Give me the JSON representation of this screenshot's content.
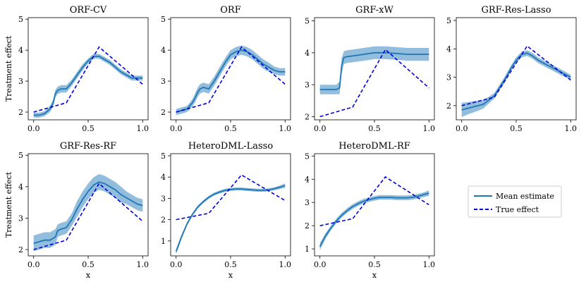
{
  "figure": {
    "ylabel": "Treatment effect",
    "xlabel": "x",
    "legend": {
      "placement": "right",
      "mean_label": "Mean estimate",
      "true_label": "True effect"
    },
    "colors": {
      "mean": "#1f77b4",
      "band": "#7fb1d6",
      "true": "#0000dd"
    }
  },
  "chart_data": [
    {
      "type": "line",
      "title": "ORF-CV",
      "xlim": [
        0,
        1
      ],
      "ylim": [
        1.75,
        5.05
      ],
      "xticks": [
        0.0,
        0.5,
        1.0
      ],
      "xtick_labels": [
        "0.0",
        "0.5",
        "1.0"
      ],
      "yticks": [
        2,
        3,
        4,
        5
      ],
      "ytick_labels": [
        "2",
        "3",
        "4",
        "5"
      ],
      "show_xlabel": false,
      "show_ylabel": true,
      "true_effect": {
        "x": [
          0,
          0.3,
          0.6,
          1.0
        ],
        "y": [
          2.0,
          2.3,
          4.1,
          2.9
        ]
      },
      "mean_estimate": {
        "x": [
          0,
          0.05,
          0.1,
          0.15,
          0.18,
          0.2,
          0.22,
          0.25,
          0.3,
          0.35,
          0.4,
          0.45,
          0.5,
          0.55,
          0.6,
          0.65,
          0.7,
          0.75,
          0.8,
          0.85,
          0.9,
          0.95,
          1.0
        ],
        "y": [
          1.9,
          1.9,
          1.95,
          2.1,
          2.3,
          2.6,
          2.7,
          2.75,
          2.75,
          2.95,
          3.2,
          3.45,
          3.65,
          3.8,
          3.8,
          3.7,
          3.6,
          3.45,
          3.3,
          3.2,
          3.1,
          3.1,
          3.1
        ]
      },
      "band_halfwidth": [
        0.08,
        0.08,
        0.08,
        0.1,
        0.12,
        0.12,
        0.12,
        0.12,
        0.12,
        0.1,
        0.1,
        0.1,
        0.08,
        0.08,
        0.08,
        0.08,
        0.08,
        0.08,
        0.08,
        0.08,
        0.08,
        0.08,
        0.08
      ]
    },
    {
      "type": "line",
      "title": "ORF",
      "xlim": [
        0,
        1
      ],
      "ylim": [
        1.75,
        5.05
      ],
      "xticks": [
        0.0,
        0.5,
        1.0
      ],
      "xtick_labels": [
        "0.0",
        "0.5",
        "1.0"
      ],
      "yticks": [
        2,
        3,
        4,
        5
      ],
      "ytick_labels": [
        "2",
        "3",
        "4",
        "5"
      ],
      "show_xlabel": false,
      "show_ylabel": false,
      "true_effect": {
        "x": [
          0,
          0.3,
          0.6,
          1.0
        ],
        "y": [
          2.0,
          2.3,
          4.1,
          2.9
        ]
      },
      "mean_estimate": {
        "x": [
          0,
          0.05,
          0.1,
          0.15,
          0.18,
          0.2,
          0.22,
          0.25,
          0.3,
          0.35,
          0.4,
          0.45,
          0.5,
          0.55,
          0.6,
          0.65,
          0.7,
          0.75,
          0.8,
          0.85,
          0.9,
          0.95,
          1.0
        ],
        "y": [
          2.0,
          2.05,
          2.1,
          2.3,
          2.5,
          2.65,
          2.75,
          2.8,
          2.75,
          3.0,
          3.3,
          3.6,
          3.85,
          3.95,
          4.0,
          3.95,
          3.85,
          3.7,
          3.55,
          3.45,
          3.35,
          3.3,
          3.3
        ]
      },
      "band_halfwidth": [
        0.1,
        0.1,
        0.1,
        0.12,
        0.15,
        0.15,
        0.15,
        0.15,
        0.15,
        0.15,
        0.15,
        0.15,
        0.15,
        0.15,
        0.15,
        0.15,
        0.15,
        0.15,
        0.15,
        0.15,
        0.12,
        0.12,
        0.12
      ]
    },
    {
      "type": "line",
      "title": "GRF-xW",
      "xlim": [
        0,
        1
      ],
      "ylim": [
        1.9,
        5.1
      ],
      "xticks": [
        0.0,
        0.5,
        1.0
      ],
      "xtick_labels": [
        "0.0",
        "0.5",
        "1.0"
      ],
      "yticks": [
        2,
        3,
        4,
        5
      ],
      "ytick_labels": [
        "2",
        "3",
        "4",
        "5"
      ],
      "show_xlabel": false,
      "show_ylabel": false,
      "true_effect": {
        "x": [
          0,
          0.3,
          0.6,
          1.0
        ],
        "y": [
          2.0,
          2.3,
          4.1,
          2.9
        ]
      },
      "mean_estimate": {
        "x": [
          0,
          0.05,
          0.1,
          0.15,
          0.18,
          0.2,
          0.22,
          0.25,
          0.3,
          0.4,
          0.5,
          0.6,
          0.7,
          0.8,
          0.9,
          1.0
        ],
        "y": [
          2.85,
          2.85,
          2.85,
          2.85,
          2.9,
          3.6,
          3.85,
          3.88,
          3.9,
          3.95,
          4.0,
          4.0,
          3.98,
          3.95,
          3.95,
          3.95
        ]
      },
      "band_halfwidth": [
        0.15,
        0.15,
        0.15,
        0.15,
        0.2,
        0.25,
        0.2,
        0.2,
        0.2,
        0.2,
        0.2,
        0.2,
        0.2,
        0.2,
        0.2,
        0.2
      ]
    },
    {
      "type": "line",
      "title": "GRF-Res-Lasso",
      "xlim": [
        0,
        1
      ],
      "ylim": [
        1.5,
        5.1
      ],
      "xticks": [
        0.0,
        0.5,
        1.0
      ],
      "xtick_labels": [
        "0.0",
        "0.5",
        "1.0"
      ],
      "yticks": [
        2,
        3,
        4,
        5
      ],
      "ytick_labels": [
        "2",
        "3",
        "4",
        "5"
      ],
      "show_xlabel": false,
      "show_ylabel": false,
      "true_effect": {
        "x": [
          0,
          0.3,
          0.6,
          1.0
        ],
        "y": [
          2.0,
          2.3,
          4.1,
          2.9
        ]
      },
      "mean_estimate": {
        "x": [
          0,
          0.05,
          0.1,
          0.15,
          0.2,
          0.25,
          0.3,
          0.35,
          0.4,
          0.45,
          0.5,
          0.55,
          0.6,
          0.65,
          0.7,
          0.75,
          0.8,
          0.85,
          0.9,
          0.95,
          1.0
        ],
        "y": [
          1.85,
          1.9,
          1.95,
          2.0,
          2.05,
          2.2,
          2.35,
          2.65,
          2.95,
          3.3,
          3.6,
          3.8,
          3.85,
          3.75,
          3.6,
          3.5,
          3.4,
          3.3,
          3.2,
          3.1,
          3.0
        ]
      },
      "band_halfwidth": [
        0.25,
        0.22,
        0.2,
        0.18,
        0.15,
        0.12,
        0.1,
        0.1,
        0.1,
        0.1,
        0.1,
        0.1,
        0.1,
        0.1,
        0.1,
        0.1,
        0.1,
        0.1,
        0.1,
        0.1,
        0.08
      ]
    },
    {
      "type": "line",
      "title": "GRF-Res-RF",
      "xlim": [
        0,
        1
      ],
      "ylim": [
        1.8,
        5.05
      ],
      "xticks": [
        0.0,
        0.5,
        1.0
      ],
      "xtick_labels": [
        "0.0",
        "0.5",
        "1.0"
      ],
      "yticks": [
        2,
        3,
        4,
        5
      ],
      "ytick_labels": [
        "2",
        "3",
        "4",
        "5"
      ],
      "show_xlabel": true,
      "show_ylabel": true,
      "true_effect": {
        "x": [
          0,
          0.3,
          0.6,
          1.0
        ],
        "y": [
          2.0,
          2.3,
          4.1,
          2.9
        ]
      },
      "mean_estimate": {
        "x": [
          0,
          0.05,
          0.1,
          0.15,
          0.2,
          0.22,
          0.25,
          0.3,
          0.35,
          0.4,
          0.45,
          0.5,
          0.55,
          0.6,
          0.65,
          0.7,
          0.75,
          0.8,
          0.85,
          0.9,
          0.95,
          1.0
        ],
        "y": [
          2.2,
          2.25,
          2.3,
          2.3,
          2.4,
          2.6,
          2.65,
          2.7,
          2.95,
          3.3,
          3.6,
          3.85,
          4.05,
          4.15,
          4.1,
          4.0,
          3.9,
          3.75,
          3.65,
          3.55,
          3.45,
          3.4
        ]
      },
      "band_halfwidth": [
        0.25,
        0.25,
        0.25,
        0.25,
        0.25,
        0.2,
        0.2,
        0.2,
        0.2,
        0.25,
        0.25,
        0.25,
        0.25,
        0.25,
        0.25,
        0.25,
        0.25,
        0.25,
        0.2,
        0.2,
        0.2,
        0.2
      ]
    },
    {
      "type": "line",
      "title": "HeteroDML-Lasso",
      "xlim": [
        0,
        1
      ],
      "ylim": [
        0.3,
        5.1
      ],
      "xticks": [
        0.0,
        0.5,
        1.0
      ],
      "xtick_labels": [
        "0.0",
        "0.5",
        "1.0"
      ],
      "yticks": [
        1,
        2,
        3,
        4,
        5
      ],
      "ytick_labels": [
        "1",
        "2",
        "3",
        "4",
        "5"
      ],
      "show_xlabel": true,
      "show_ylabel": false,
      "true_effect": {
        "x": [
          0,
          0.3,
          0.6,
          1.0
        ],
        "y": [
          2.0,
          2.3,
          4.1,
          2.9
        ]
      },
      "mean_estimate": {
        "x": [
          0,
          0.05,
          0.1,
          0.15,
          0.2,
          0.25,
          0.3,
          0.35,
          0.4,
          0.45,
          0.5,
          0.55,
          0.6,
          0.65,
          0.7,
          0.75,
          0.8,
          0.85,
          0.9,
          0.95,
          1.0
        ],
        "y": [
          0.5,
          1.2,
          1.8,
          2.25,
          2.6,
          2.85,
          3.05,
          3.2,
          3.3,
          3.38,
          3.42,
          3.44,
          3.44,
          3.42,
          3.4,
          3.38,
          3.38,
          3.4,
          3.45,
          3.52,
          3.6
        ]
      },
      "band_halfwidth": [
        0.12,
        0.1,
        0.08,
        0.07,
        0.07,
        0.07,
        0.07,
        0.07,
        0.07,
        0.07,
        0.07,
        0.07,
        0.07,
        0.07,
        0.07,
        0.07,
        0.07,
        0.07,
        0.07,
        0.08,
        0.1
      ]
    },
    {
      "type": "line",
      "title": "HeteroDML-RF",
      "xlim": [
        0,
        1
      ],
      "ylim": [
        0.7,
        5.1
      ],
      "xticks": [
        0.0,
        0.5,
        1.0
      ],
      "xtick_labels": [
        "0.0",
        "0.5",
        "1.0"
      ],
      "yticks": [
        1,
        2,
        3,
        4,
        5
      ],
      "ytick_labels": [
        "1",
        "2",
        "3",
        "4",
        "5"
      ],
      "show_xlabel": true,
      "show_ylabel": false,
      "true_effect": {
        "x": [
          0,
          0.3,
          0.6,
          1.0
        ],
        "y": [
          2.0,
          2.3,
          4.1,
          2.9
        ]
      },
      "mean_estimate": {
        "x": [
          0,
          0.05,
          0.1,
          0.15,
          0.2,
          0.25,
          0.3,
          0.35,
          0.4,
          0.45,
          0.5,
          0.55,
          0.6,
          0.65,
          0.7,
          0.75,
          0.8,
          0.85,
          0.9,
          0.95,
          1.0
        ],
        "y": [
          1.1,
          1.55,
          1.9,
          2.2,
          2.45,
          2.65,
          2.82,
          2.95,
          3.05,
          3.12,
          3.18,
          3.22,
          3.22,
          3.22,
          3.2,
          3.2,
          3.2,
          3.22,
          3.27,
          3.33,
          3.4
        ]
      },
      "band_halfwidth": [
        0.15,
        0.12,
        0.1,
        0.1,
        0.1,
        0.1,
        0.1,
        0.1,
        0.1,
        0.1,
        0.1,
        0.1,
        0.1,
        0.1,
        0.1,
        0.1,
        0.1,
        0.1,
        0.1,
        0.1,
        0.12
      ]
    }
  ]
}
